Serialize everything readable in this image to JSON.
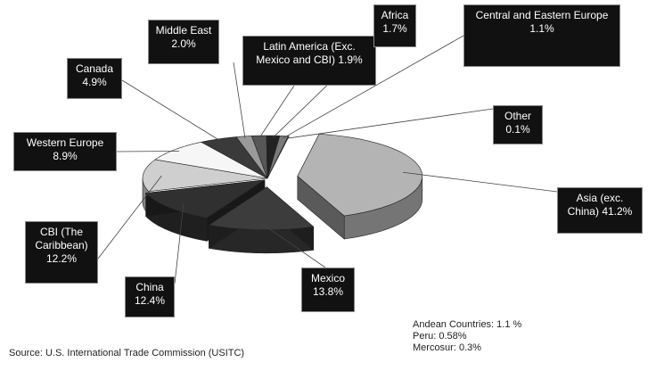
{
  "chart_data": {
    "type": "pie3d",
    "categories": [
      "Asia (exc. China)",
      "Mexico",
      "China",
      "CBI (The Caribbean)",
      "Western Europe",
      "Canada",
      "Middle East",
      "Latin America (Exc. Mexico and CBI)",
      "Africa",
      "Central and Eastern Europe",
      "Other"
    ],
    "values": [
      41.2,
      13.8,
      12.4,
      12.2,
      8.9,
      4.9,
      2.0,
      1.9,
      1.7,
      1.1,
      0.1
    ],
    "value_labels": [
      "41.2%",
      "13.8%",
      "12.4%",
      "12.2%",
      "8.9%",
      "4.9%",
      "2.0%",
      "1.9%",
      "1.7%",
      "1.1%",
      "0.1%"
    ],
    "colors": [
      "#b4b4b4",
      "#3c3c3c",
      "#303030",
      "#cfcfcf",
      "#f6f6f6",
      "#3a3a3a",
      "#9a9a9a",
      "#575757",
      "#222222",
      "#7a7a7a",
      "#444444"
    ],
    "notes": [
      "Andean Countries: 1.1 %",
      "Peru: 0.58%",
      "Mercosur: 0.3%"
    ],
    "source": "Source: U.S. International Trade Commission (USITC)"
  }
}
